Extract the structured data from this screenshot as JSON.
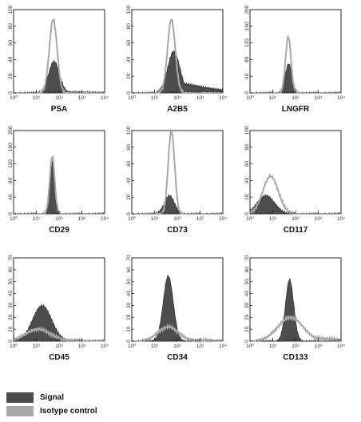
{
  "colors": {
    "signal": "#4d4d4d",
    "isotype": "#a9a9a9",
    "axis": "#222222"
  },
  "legend": [
    {
      "label": "Signal",
      "color": "#4d4d4d"
    },
    {
      "label": "Isotype control",
      "color": "#a9a9a9"
    }
  ],
  "chart_data": [
    {
      "type": "area",
      "marker": "PSA",
      "xscale": "log",
      "xlim": [
        1,
        10000
      ],
      "ylim": [
        0,
        100
      ],
      "x_ticks": [
        "10⁰",
        "10¹",
        "10²",
        "10³",
        "10⁴"
      ],
      "y_ticks": [
        0,
        20,
        40,
        60,
        80,
        100
      ],
      "series": [
        {
          "name": "Signal",
          "peak_x": 60,
          "peak_y": 38,
          "width": 0.24,
          "tail": 2
        },
        {
          "name": "Isotype control",
          "peak_x": 55,
          "peak_y": 88,
          "width": 0.17,
          "tail": 0
        }
      ]
    },
    {
      "type": "area",
      "marker": "A2B5",
      "xscale": "log",
      "xlim": [
        1,
        10000
      ],
      "ylim": [
        0,
        100
      ],
      "x_ticks": [
        "10⁰",
        "10¹",
        "10²",
        "10³",
        "10⁴"
      ],
      "y_ticks": [
        0,
        20,
        40,
        60,
        80,
        100
      ],
      "series": [
        {
          "name": "Signal",
          "peak_x": 70,
          "peak_y": 50,
          "width": 0.27,
          "tail": 18
        },
        {
          "name": "Isotype control",
          "peak_x": 55,
          "peak_y": 88,
          "width": 0.17,
          "tail": 0
        }
      ]
    },
    {
      "type": "area",
      "marker": "LNGFR",
      "xscale": "log",
      "xlim": [
        1,
        10000
      ],
      "ylim": [
        0,
        200
      ],
      "x_ticks": [
        "10⁰",
        "10¹",
        "10²",
        "10³",
        "10⁴"
      ],
      "y_ticks": [
        0,
        40,
        80,
        120,
        160,
        200
      ],
      "series": [
        {
          "name": "Signal",
          "peak_x": 50,
          "peak_y": 70,
          "width": 0.15,
          "tail": 0
        },
        {
          "name": "Isotype control",
          "peak_x": 48,
          "peak_y": 135,
          "width": 0.12,
          "tail": 0
        }
      ]
    },
    {
      "type": "area",
      "marker": "CD29",
      "xscale": "log",
      "xlim": [
        1,
        10000
      ],
      "ylim": [
        0,
        200
      ],
      "x_ticks": [
        "10⁰",
        "10¹",
        "10²",
        "10³",
        "10⁴"
      ],
      "y_ticks": [
        0,
        40,
        80,
        120,
        160,
        200
      ],
      "series": [
        {
          "name": "Signal",
          "peak_x": 50,
          "peak_y": 128,
          "width": 0.12,
          "tail": 0
        },
        {
          "name": "Isotype control",
          "peak_x": 50,
          "peak_y": 138,
          "width": 0.11,
          "tail": 0
        }
      ]
    },
    {
      "type": "area",
      "marker": "CD73",
      "xscale": "log",
      "xlim": [
        1,
        10000
      ],
      "ylim": [
        0,
        100
      ],
      "x_ticks": [
        "10⁰",
        "10¹",
        "10²",
        "10³",
        "10⁴"
      ],
      "y_ticks": [
        0,
        20,
        40,
        60,
        80,
        100
      ],
      "series": [
        {
          "name": "Signal",
          "peak_x": 45,
          "peak_y": 22,
          "width": 0.22,
          "tail": 0
        },
        {
          "name": "Isotype control",
          "peak_x": 55,
          "peak_y": 100,
          "width": 0.14,
          "tail": 0
        }
      ]
    },
    {
      "type": "area",
      "marker": "CD117",
      "xscale": "log",
      "xlim": [
        1,
        10000
      ],
      "ylim": [
        0,
        100
      ],
      "x_ticks": [
        "10⁰",
        "10¹",
        "10²",
        "10³",
        "10⁴"
      ],
      "y_ticks": [
        0,
        20,
        40,
        60,
        80,
        100
      ],
      "series": [
        {
          "name": "Signal",
          "peak_x": 5,
          "peak_y": 22,
          "width": 0.38,
          "tail": 0
        },
        {
          "name": "Isotype control",
          "peak_x": 8,
          "peak_y": 45,
          "width": 0.34,
          "tail": 0
        }
      ]
    },
    {
      "type": "area",
      "marker": "CD45",
      "xscale": "log",
      "xlim": [
        1,
        10000
      ],
      "ylim": [
        0,
        70
      ],
      "x_ticks": [
        "10⁰",
        "10¹",
        "10²",
        "10³",
        "10⁴"
      ],
      "y_ticks": [
        0,
        10,
        20,
        30,
        40,
        50,
        60,
        70
      ],
      "series": [
        {
          "name": "Signal",
          "peak_x": 18,
          "peak_y": 30,
          "width": 0.42,
          "tail": 0
        },
        {
          "name": "Isotype control",
          "peak_x": 12,
          "peak_y": 10,
          "width": 0.55,
          "tail": 2
        }
      ]
    },
    {
      "type": "area",
      "marker": "CD34",
      "xscale": "log",
      "xlim": [
        1,
        10000
      ],
      "ylim": [
        0,
        70
      ],
      "x_ticks": [
        "10⁰",
        "10¹",
        "10²",
        "10³",
        "10⁴"
      ],
      "y_ticks": [
        0,
        10,
        20,
        30,
        40,
        50,
        60,
        70
      ],
      "series": [
        {
          "name": "Signal",
          "peak_x": 40,
          "peak_y": 55,
          "width": 0.22,
          "tail": 0
        },
        {
          "name": "Isotype control",
          "peak_x": 40,
          "peak_y": 12,
          "width": 0.45,
          "tail": 2
        }
      ]
    },
    {
      "type": "area",
      "marker": "CD133",
      "xscale": "log",
      "xlim": [
        1,
        10000
      ],
      "ylim": [
        0,
        70
      ],
      "x_ticks": [
        "10⁰",
        "10¹",
        "10²",
        "10³",
        "10⁴"
      ],
      "y_ticks": [
        0,
        10,
        20,
        30,
        40,
        50,
        60,
        70
      ],
      "series": [
        {
          "name": "Signal",
          "peak_x": 55,
          "peak_y": 52,
          "width": 0.18,
          "tail": 0
        },
        {
          "name": "Isotype control",
          "peak_x": 60,
          "peak_y": 20,
          "width": 0.55,
          "tail": 6
        }
      ]
    }
  ]
}
